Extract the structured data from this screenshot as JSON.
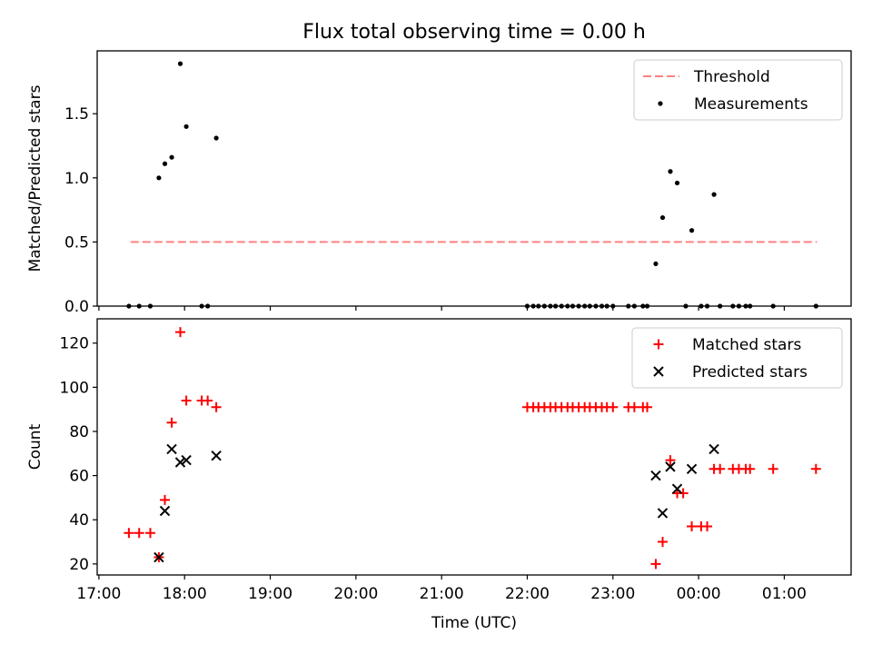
{
  "title": "Flux total observing time = 0.00 h",
  "colors": {
    "threshold": "#ff8080",
    "measurements": "#000000",
    "matched": "#ff0000",
    "predicted": "#000000"
  },
  "chart_data": [
    {
      "type": "scatter",
      "ylabel": "Matched/Predicted stars",
      "xlim": [
        16.98,
        25.78
      ],
      "ylim": [
        0,
        1.99
      ],
      "y_ticks": [
        0.0,
        0.5,
        1.0,
        1.5
      ],
      "y_tick_labels": [
        "0.0",
        "0.5",
        "1.0",
        "1.5"
      ],
      "legend": {
        "placement": "upper right",
        "entries": [
          "Threshold",
          "Measurements"
        ]
      },
      "threshold": {
        "name": "Threshold",
        "y": 0.5,
        "x_range": [
          17.37,
          25.38
        ],
        "style": "dashed"
      },
      "series": [
        {
          "name": "Measurements",
          "marker": "dot",
          "points": [
            [
              17.35,
              0.0
            ],
            [
              17.47,
              0.0
            ],
            [
              17.6,
              0.0
            ],
            [
              17.7,
              1.0
            ],
            [
              17.77,
              1.11
            ],
            [
              17.85,
              1.16
            ],
            [
              17.95,
              1.89
            ],
            [
              18.02,
              1.4
            ],
            [
              18.2,
              0.0
            ],
            [
              18.27,
              0.0
            ],
            [
              18.37,
              1.31
            ],
            [
              22.0,
              0.0
            ],
            [
              22.07,
              0.0
            ],
            [
              22.13,
              0.0
            ],
            [
              22.2,
              0.0
            ],
            [
              22.27,
              0.0
            ],
            [
              22.33,
              0.0
            ],
            [
              22.4,
              0.0
            ],
            [
              22.47,
              0.0
            ],
            [
              22.53,
              0.0
            ],
            [
              22.6,
              0.0
            ],
            [
              22.67,
              0.0
            ],
            [
              22.73,
              0.0
            ],
            [
              22.8,
              0.0
            ],
            [
              22.87,
              0.0
            ],
            [
              22.93,
              0.0
            ],
            [
              23.0,
              0.0
            ],
            [
              23.18,
              0.0
            ],
            [
              23.25,
              0.0
            ],
            [
              23.35,
              0.0
            ],
            [
              23.4,
              0.0
            ],
            [
              23.5,
              0.33
            ],
            [
              23.58,
              0.69
            ],
            [
              23.67,
              1.05
            ],
            [
              23.75,
              0.96
            ],
            [
              23.85,
              0.0
            ],
            [
              23.92,
              0.59
            ],
            [
              24.03,
              0.0
            ],
            [
              24.1,
              0.0
            ],
            [
              24.18,
              0.87
            ],
            [
              24.25,
              0.0
            ],
            [
              24.4,
              0.0
            ],
            [
              24.47,
              0.0
            ],
            [
              24.55,
              0.0
            ],
            [
              24.6,
              0.0
            ],
            [
              24.87,
              0.0
            ],
            [
              25.37,
              0.0
            ]
          ]
        }
      ]
    },
    {
      "type": "scatter",
      "xlabel": "Time (UTC)",
      "ylabel": "Count",
      "xlim": [
        16.98,
        25.78
      ],
      "ylim": [
        15,
        131
      ],
      "x_ticks": [
        17,
        18,
        19,
        20,
        21,
        22,
        23,
        24,
        25
      ],
      "x_tick_labels": [
        "17:00",
        "18:00",
        "19:00",
        "20:00",
        "21:00",
        "22:00",
        "23:00",
        "00:00",
        "01:00"
      ],
      "y_ticks": [
        20,
        40,
        60,
        80,
        100,
        120
      ],
      "y_tick_labels": [
        "20",
        "40",
        "60",
        "80",
        "100",
        "120"
      ],
      "legend": {
        "placement": "upper right",
        "entries": [
          "Matched stars",
          "Predicted stars"
        ]
      },
      "series": [
        {
          "name": "Matched stars",
          "marker": "plus",
          "points": [
            [
              17.35,
              34
            ],
            [
              17.47,
              34
            ],
            [
              17.6,
              34
            ],
            [
              17.7,
              23
            ],
            [
              17.77,
              49
            ],
            [
              17.85,
              84
            ],
            [
              17.95,
              125
            ],
            [
              18.02,
              94
            ],
            [
              18.2,
              94
            ],
            [
              18.27,
              94
            ],
            [
              18.37,
              91
            ],
            [
              22.0,
              91
            ],
            [
              22.07,
              91
            ],
            [
              22.13,
              91
            ],
            [
              22.2,
              91
            ],
            [
              22.27,
              91
            ],
            [
              22.33,
              91
            ],
            [
              22.4,
              91
            ],
            [
              22.47,
              91
            ],
            [
              22.53,
              91
            ],
            [
              22.6,
              91
            ],
            [
              22.67,
              91
            ],
            [
              22.73,
              91
            ],
            [
              22.8,
              91
            ],
            [
              22.87,
              91
            ],
            [
              22.93,
              91
            ],
            [
              23.0,
              91
            ],
            [
              23.18,
              91
            ],
            [
              23.25,
              91
            ],
            [
              23.35,
              91
            ],
            [
              23.4,
              91
            ],
            [
              23.5,
              20
            ],
            [
              23.58,
              30
            ],
            [
              23.67,
              67
            ],
            [
              23.75,
              52
            ],
            [
              23.82,
              52
            ],
            [
              23.92,
              37
            ],
            [
              24.03,
              37
            ],
            [
              24.1,
              37
            ],
            [
              24.18,
              63
            ],
            [
              24.25,
              63
            ],
            [
              24.4,
              63
            ],
            [
              24.47,
              63
            ],
            [
              24.55,
              63
            ],
            [
              24.6,
              63
            ],
            [
              24.87,
              63
            ],
            [
              25.37,
              63
            ]
          ]
        },
        {
          "name": "Predicted stars",
          "marker": "x",
          "points": [
            [
              17.7,
              23
            ],
            [
              17.77,
              44
            ],
            [
              17.85,
              72
            ],
            [
              17.95,
              66
            ],
            [
              18.02,
              67
            ],
            [
              18.37,
              69
            ],
            [
              23.5,
              60
            ],
            [
              23.58,
              43
            ],
            [
              23.67,
              64
            ],
            [
              23.75,
              54
            ],
            [
              23.92,
              63
            ],
            [
              24.18,
              72
            ]
          ]
        }
      ]
    }
  ]
}
